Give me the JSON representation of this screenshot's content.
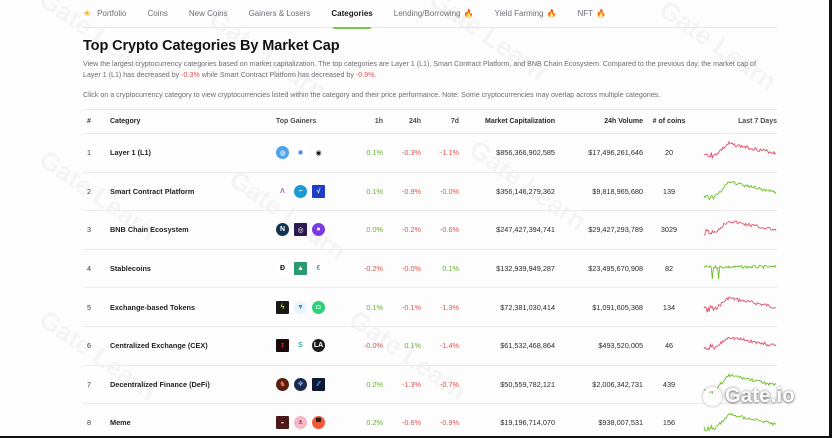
{
  "nav": {
    "items": [
      {
        "label": "Portfolio",
        "icon": "star-icon",
        "active": false,
        "hot": false
      },
      {
        "label": "Coins",
        "active": false,
        "hot": false
      },
      {
        "label": "New Coins",
        "active": false,
        "hot": false
      },
      {
        "label": "Gainers & Losers",
        "active": false,
        "hot": false
      },
      {
        "label": "Categories",
        "active": true,
        "hot": false
      },
      {
        "label": "Lending/Borrowing",
        "active": false,
        "hot": true
      },
      {
        "label": "Yield Farming",
        "active": false,
        "hot": true
      },
      {
        "label": "NFT",
        "active": false,
        "hot": true
      }
    ],
    "hot_icon": "fire-icon"
  },
  "header": {
    "title": "Top Crypto Categories By Market Cap",
    "desc_part1": "View the largest cryptocurrency categories based on market capitalization. The top categories are Layer 1 (L1), Smart Contract Platform, and BNB Chain Ecosystem. Compared to the previous day, the market cap of Layer 1 (L1) has decreased by ",
    "desc_val1": "-0.3%",
    "desc_part2": " while Smart Contract Platform has decreased by ",
    "desc_val2": "-0.9%",
    "desc_part3": ".",
    "note": "Click on a cryptocurrency category to view cryptocurrencies listed within the category and their price performance. Note: Some cryptocurrencies may overlap across multiple categories."
  },
  "table": {
    "columns": {
      "rank": "#",
      "category": "Category",
      "top_gainers": "Top Gainers",
      "h1": "1h",
      "h24": "24h",
      "d7": "7d",
      "market_cap": "Market Capitalization",
      "volume": "24h Volume",
      "coins": "# of coins",
      "last7": "Last 7 Days"
    },
    "rows": [
      {
        "rank": "1",
        "category": "Layer 1 (L1)",
        "h1": "0.1%",
        "h24": "-0.3%",
        "d7": "-1.1%",
        "market_cap": "$856,366,902,585",
        "volume": "$17,496,261,646",
        "coins": "20",
        "trend": "down",
        "gainers": [
          {
            "name": "coin-a-icon",
            "bg": "#4ba3e8",
            "glyph": "◍",
            "round": true
          },
          {
            "name": "coin-b-icon",
            "bg": "#ffffff",
            "fg": "#3a7be6",
            "glyph": "✺",
            "round": true
          },
          {
            "name": "coin-c-icon",
            "bg": "#ffffff",
            "fg": "#111",
            "glyph": "◉",
            "round": true
          }
        ]
      },
      {
        "rank": "2",
        "category": "Smart Contract Platform",
        "h1": "0.1%",
        "h24": "-0.9%",
        "d7": "-0.0%",
        "market_cap": "$356,146,279,362",
        "volume": "$9,818,965,680",
        "coins": "139",
        "trend": "up",
        "gainers": [
          {
            "name": "coin-d-icon",
            "bg": "#ffffff",
            "fg": "#b14fd9",
            "glyph": "Λ",
            "round": true
          },
          {
            "name": "coin-e-icon",
            "bg": "#1c9ad6",
            "glyph": "−",
            "round": true
          },
          {
            "name": "coin-f-icon",
            "bg": "#1f3dc4",
            "glyph": "√",
            "round": false
          }
        ]
      },
      {
        "rank": "3",
        "category": "BNB Chain Ecosystem",
        "h1": "0.0%",
        "h24": "-0.2%",
        "d7": "-0.6%",
        "market_cap": "$247,427,394,741",
        "volume": "$29,427,293,789",
        "coins": "3029",
        "trend": "down",
        "gainers": [
          {
            "name": "coin-g-icon",
            "bg": "#0f3350",
            "glyph": "N",
            "round": true
          },
          {
            "name": "coin-h-icon",
            "bg": "#2b1a4f",
            "glyph": "◎",
            "round": false
          },
          {
            "name": "coin-i-icon",
            "bg": "#7a3be0",
            "glyph": "●",
            "round": true
          }
        ]
      },
      {
        "rank": "4",
        "category": "Stablecoins",
        "h1": "-0.2%",
        "h24": "-0.0%",
        "d7": "0.1%",
        "market_cap": "$132,939,949,287",
        "volume": "$23,495,670,908",
        "coins": "82",
        "trend": "flat",
        "gainers": [
          {
            "name": "coin-j-icon",
            "bg": "#ffffff",
            "fg": "#111",
            "glyph": "Ð",
            "round": true
          },
          {
            "name": "coin-k-icon",
            "bg": "#2a9a6e",
            "glyph": "▲",
            "round": false
          },
          {
            "name": "coin-l-icon",
            "bg": "#ffffff",
            "fg": "#6b8fc4",
            "glyph": "€",
            "round": true
          }
        ]
      },
      {
        "rank": "5",
        "category": "Exchange-based Tokens",
        "h1": "0.1%",
        "h24": "-0.1%",
        "d7": "-1.3%",
        "market_cap": "$72,381,030,414",
        "volume": "$1,091,605,368",
        "coins": "134",
        "trend": "down",
        "gainers": [
          {
            "name": "coin-m-icon",
            "bg": "#1a1a1a",
            "fg": "#b6f03a",
            "glyph": "ϟ",
            "round": false
          },
          {
            "name": "coin-n-icon",
            "bg": "#eaf3fb",
            "fg": "#2a8fe0",
            "glyph": "▼",
            "round": true
          },
          {
            "name": "coin-o-icon",
            "bg": "#2fd07a",
            "glyph": "◘",
            "round": true
          }
        ]
      },
      {
        "rank": "6",
        "category": "Centralized Exchange (CEX)",
        "h1": "-0.0%",
        "h24": "0.1%",
        "d7": "-1.4%",
        "market_cap": "$61,532,468,864",
        "volume": "$493,520,005",
        "coins": "46",
        "trend": "down",
        "gainers": [
          {
            "name": "coin-p-icon",
            "bg": "#1a0b0b",
            "fg": "#d42a2a",
            "glyph": "ɪ",
            "round": false
          },
          {
            "name": "coin-q-icon",
            "bg": "#ffffff",
            "fg": "#27b39c",
            "glyph": "S",
            "round": true
          },
          {
            "name": "coin-r-icon",
            "bg": "#1d1d1f",
            "glyph": "LA",
            "round": true
          }
        ]
      },
      {
        "rank": "7",
        "category": "Decentralized Finance (DeFi)",
        "h1": "0.2%",
        "h24": "-1.3%",
        "d7": "-0.7%",
        "market_cap": "$50,559,782,121",
        "volume": "$2,006,342,731",
        "coins": "439",
        "trend": "up",
        "gainers": [
          {
            "name": "coin-s-icon",
            "bg": "#5a1f12",
            "fg": "#f07a3a",
            "glyph": "♞",
            "round": true
          },
          {
            "name": "coin-t-icon",
            "bg": "#1e2a4a",
            "fg": "#7fa6ff",
            "glyph": "❖",
            "round": true
          },
          {
            "name": "coin-u-icon",
            "bg": "#0c1a33",
            "fg": "#4fa3ff",
            "glyph": "⁄⁄",
            "round": false
          }
        ]
      },
      {
        "rank": "8",
        "category": "Meme",
        "h1": "0.2%",
        "h24": "-0.6%",
        "d7": "-0.9%",
        "market_cap": "$19,196,714,070",
        "volume": "$938,007,531",
        "coins": "156",
        "trend": "up",
        "gainers": [
          {
            "name": "coin-v-icon",
            "bg": "#4a1a1a",
            "fg": "#ff9fb0",
            "glyph": "◒",
            "round": false
          },
          {
            "name": "coin-w-icon",
            "bg": "#f4b8c8",
            "fg": "#b4566d",
            "glyph": "ᴥ",
            "round": true
          },
          {
            "name": "coin-x-icon",
            "bg": "#f05a3a",
            "fg": "#2a1a1a",
            "glyph": "▀",
            "round": true
          }
        ]
      }
    ]
  },
  "colors": {
    "positive": "#6aaf2d",
    "negative": "#e0534f",
    "spark_down": "#e0536a",
    "spark_up": "#6ebf2a",
    "accent_tab": "#7ec34a"
  },
  "brand": {
    "logo_text": "Gate.io",
    "watermark": "Gate Learn"
  }
}
